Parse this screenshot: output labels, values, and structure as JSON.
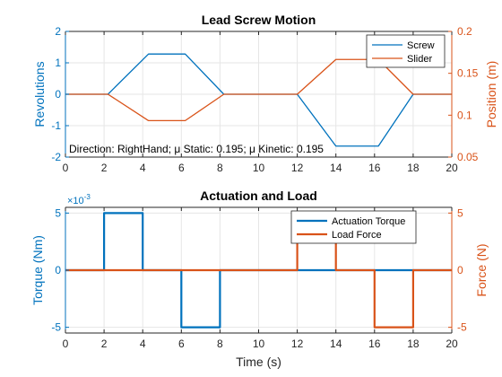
{
  "colors": {
    "blue": "#0072BD",
    "orange": "#D95319",
    "grid": "#e6e6e6",
    "axis": "#262626"
  },
  "chart_data": [
    {
      "type": "line",
      "title": "Lead Screw Motion",
      "xlabel": "",
      "ylabel_left": "Revolutions",
      "ylabel_right": "Position (m)",
      "xlim": [
        0,
        20
      ],
      "ylim_left": [
        -2,
        2
      ],
      "ylim_right": [
        0.05,
        0.2
      ],
      "xticks": [
        "0",
        "2",
        "4",
        "6",
        "8",
        "10",
        "12",
        "14",
        "16",
        "18",
        "20"
      ],
      "yticks_left": [
        "-2",
        "-1",
        "0",
        "1",
        "2"
      ],
      "yticks_right": [
        "0.05",
        "0.1",
        "0.15",
        "0.2"
      ],
      "grid": true,
      "legend_placement": "top-right",
      "annotation": "Direction: RightHand; μ Static: 0.195; μ Kinetic: 0.195",
      "series": [
        {
          "name": "Screw",
          "axis": "left",
          "color": "#0072BD",
          "x": [
            0,
            2.2,
            4.3,
            6.2,
            8.2,
            12,
            14,
            16.2,
            18,
            20
          ],
          "y": [
            0,
            0,
            1.28,
            1.28,
            0,
            0,
            -1.65,
            -1.65,
            0,
            0
          ]
        },
        {
          "name": "Slider",
          "axis": "right",
          "color": "#D95319",
          "x": [
            0,
            2.2,
            4.3,
            6.2,
            8.2,
            12,
            14,
            16.2,
            18,
            20
          ],
          "y": [
            0.125,
            0.125,
            0.0935,
            0.0935,
            0.125,
            0.125,
            0.1665,
            0.1665,
            0.125,
            0.125
          ]
        }
      ]
    },
    {
      "type": "line",
      "title": "Actuation and Load",
      "xlabel": "Time (s)",
      "ylabel_left": "Torque (Nm)",
      "ylabel_right": "Force (N)",
      "xlim": [
        0,
        20
      ],
      "ylim_left": [
        -0.0055,
        0.0055
      ],
      "ylim_right": [
        -5.5,
        5.5
      ],
      "xticks": [
        "0",
        "2",
        "4",
        "6",
        "8",
        "10",
        "12",
        "14",
        "16",
        "18",
        "20"
      ],
      "yticks_left": [
        "-5",
        "0",
        "5"
      ],
      "yticks_right": [
        "-5",
        "0",
        "5"
      ],
      "exponent_label": "×10",
      "exponent_power": "-3",
      "grid": true,
      "legend_placement": "top-right",
      "series": [
        {
          "name": "Actuation Torque",
          "axis": "left",
          "color": "#0072BD",
          "x": [
            0,
            2,
            2,
            4,
            4,
            6,
            6,
            8,
            8,
            20
          ],
          "y": [
            0,
            0,
            0.005,
            0.005,
            0,
            0,
            -0.005,
            -0.005,
            0,
            0
          ]
        },
        {
          "name": "Load Force",
          "axis": "right",
          "color": "#D95319",
          "x": [
            0,
            12,
            12,
            14,
            14,
            16,
            16,
            18,
            18,
            20
          ],
          "y": [
            0,
            0,
            5,
            5,
            0,
            0,
            -5,
            -5,
            0,
            0
          ]
        }
      ]
    }
  ]
}
